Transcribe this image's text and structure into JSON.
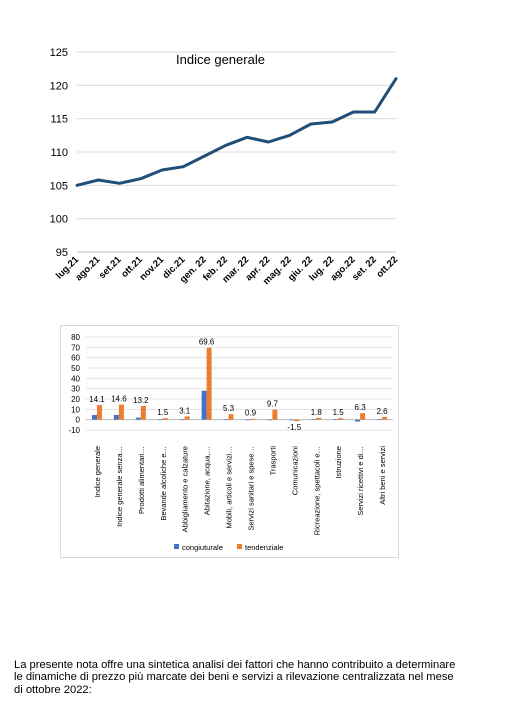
{
  "chart_data": [
    {
      "type": "line",
      "title": "Indice generale",
      "categories": [
        "lug.21",
        "ago.21",
        "set.21",
        "ott.21",
        "nov.21",
        "dic.21",
        "gen. 22",
        "feb. 22",
        "mar. 22",
        "apr. 22",
        "mag. 22",
        "giu. 22",
        "lug. 22",
        "ago.22",
        "set. 22",
        "ott.22"
      ],
      "series": [
        {
          "values": [
            105.0,
            105.8,
            105.3,
            106.0,
            107.3,
            107.8,
            109.4,
            111.0,
            112.2,
            111.5,
            112.5,
            114.2,
            114.5,
            116.0,
            116.0,
            121.0
          ],
          "color": "#1f4e79"
        }
      ],
      "ylim": [
        95,
        125
      ],
      "yticks": [
        95,
        100,
        105,
        110,
        115,
        120,
        125
      ],
      "grid": true
    },
    {
      "type": "bar",
      "categories": [
        "Indice generale",
        "Indice generale senza…",
        "Prodotti alimentari…",
        "Bevande alcoliche e…",
        "Abbigliamento e calzature",
        "Abitazione, acqua,…",
        "Mobili, articoli e servizi…",
        "Servizi sanitari e spese…",
        "Trasporti",
        "Comunicazioni",
        "Ricreazione, spettacoli e…",
        "Istruzione",
        "Servizi ricettivi e di…",
        "Altri beni e servizi"
      ],
      "series": [
        {
          "name": "congiuturale",
          "color": "#4472c4",
          "values": [
            4.5,
            4.6,
            2.0,
            0.3,
            0.2,
            28.0,
            0.5,
            0.1,
            -0.4,
            0.0,
            0.3,
            0.3,
            -1.8,
            0.4
          ]
        },
        {
          "name": "tendenziale",
          "color": "#ed7d31",
          "values": [
            14.1,
            14.6,
            13.2,
            1.5,
            3.1,
            69.6,
            5.3,
            0.9,
            9.7,
            -1.5,
            1.8,
            1.5,
            6.3,
            2.6
          ]
        }
      ],
      "data_labels": [
        "14.1",
        "14.6",
        "13.2",
        "1.5",
        "3.1",
        "69.6",
        "5.3",
        "0.9",
        "9.7",
        "-1.5",
        "1.8",
        "1.5",
        "6.3",
        "2.6"
      ],
      "ylim": [
        -10,
        80
      ],
      "yticks": [
        -10,
        0,
        10,
        20,
        30,
        40,
        50,
        60,
        70,
        80
      ],
      "grid": true,
      "legend": "bottom"
    }
  ],
  "paragraph": {
    "line1": "La presente nota offre una sintetica analisi dei fattori che hanno contribuito a determinare",
    "line2": "le dinamiche di prezzo più marcate dei beni e servizi a rilevazione centralizzata nel mese",
    "line3": "di ottobre 2022:"
  }
}
